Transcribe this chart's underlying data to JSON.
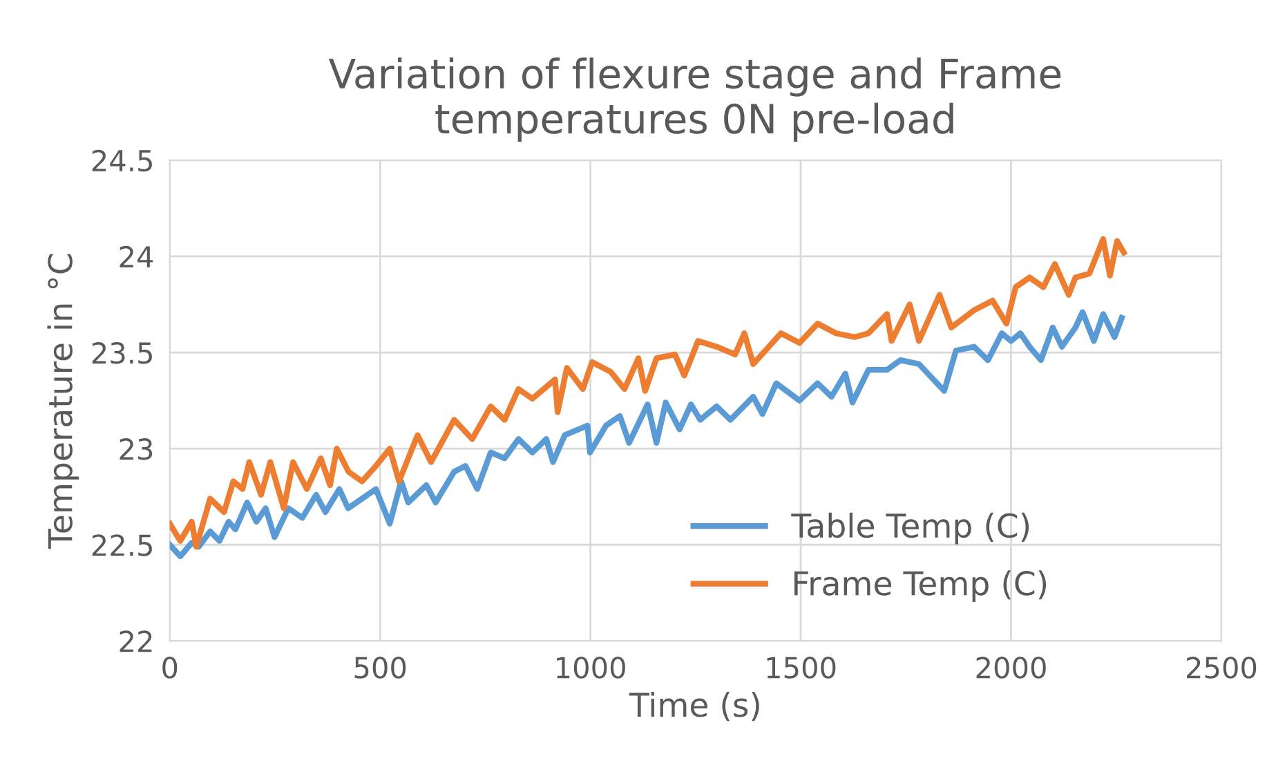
{
  "chart_data": {
    "type": "line",
    "title": "Variation of flexure stage and Frame\ntemperatures 0N pre-load",
    "xlabel": "Time (s)",
    "ylabel": "Temperature in °C",
    "xlim": [
      0,
      2500
    ],
    "xticks": [
      0,
      500,
      1000,
      1500,
      2000,
      2500
    ],
    "ylim": [
      22,
      24.5
    ],
    "yticks": [
      22,
      22.5,
      23,
      23.5,
      24,
      24.5
    ],
    "grid": true,
    "legend": "bottom right",
    "marker": "none",
    "line_style": "solid",
    "series": [
      {
        "name": "Table Temp (C)",
        "color": "#5b9bd5",
        "x": [
          0,
          25,
          52,
          69,
          96,
          118,
          140,
          156,
          184,
          206,
          228,
          249,
          282,
          315,
          348,
          370,
          403,
          424,
          457,
          490,
          523,
          550,
          567,
          610,
          632,
          676,
          703,
          731,
          763,
          796,
          829,
          862,
          895,
          911,
          939,
          993,
          999,
          1037,
          1070,
          1092,
          1136,
          1157,
          1179,
          1212,
          1239,
          1261,
          1300,
          1333,
          1387,
          1409,
          1442,
          1497,
          1540,
          1573,
          1606,
          1623,
          1661,
          1705,
          1737,
          1781,
          1841,
          1869,
          1912,
          1945,
          1978,
          2000,
          2022,
          2044,
          2071,
          2099,
          2121,
          2153,
          2170,
          2197,
          2219,
          2246,
          2263
        ],
        "values": [
          22.5,
          22.44,
          22.51,
          22.49,
          22.57,
          22.52,
          22.62,
          22.58,
          22.72,
          22.62,
          22.69,
          22.54,
          22.69,
          22.64,
          22.76,
          22.67,
          22.79,
          22.69,
          22.74,
          22.79,
          22.61,
          22.83,
          22.72,
          22.81,
          22.72,
          22.88,
          22.91,
          22.79,
          22.98,
          22.95,
          23.05,
          22.98,
          23.05,
          22.93,
          23.07,
          23.12,
          22.98,
          23.12,
          23.17,
          23.03,
          23.23,
          23.03,
          23.24,
          23.1,
          23.23,
          23.15,
          23.22,
          23.15,
          23.27,
          23.18,
          23.34,
          23.25,
          23.34,
          23.27,
          23.39,
          23.24,
          23.41,
          23.41,
          23.46,
          23.44,
          23.3,
          23.51,
          23.53,
          23.46,
          23.6,
          23.56,
          23.6,
          23.53,
          23.46,
          23.63,
          23.53,
          23.63,
          23.71,
          23.56,
          23.7,
          23.58,
          23.68
        ]
      },
      {
        "name": "Frame Temp (C)",
        "color": "#ed7d31",
        "x": [
          0,
          25,
          52,
          63,
          96,
          129,
          151,
          173,
          189,
          217,
          239,
          271,
          293,
          326,
          359,
          381,
          397,
          425,
          457,
          490,
          523,
          545,
          589,
          621,
          676,
          719,
          763,
          796,
          829,
          862,
          916,
          922,
          944,
          982,
          1004,
          1048,
          1081,
          1114,
          1130,
          1157,
          1201,
          1223,
          1256,
          1300,
          1344,
          1366,
          1387,
          1453,
          1497,
          1540,
          1584,
          1628,
          1661,
          1705,
          1716,
          1759,
          1781,
          1830,
          1858,
          1912,
          1956,
          1989,
          2011,
          2044,
          2077,
          2104,
          2137,
          2153,
          2186,
          2219,
          2235,
          2252,
          2268
        ],
        "values": [
          22.61,
          22.52,
          22.62,
          22.49,
          22.74,
          22.67,
          22.83,
          22.79,
          22.93,
          22.76,
          22.93,
          22.69,
          22.93,
          22.79,
          22.95,
          22.81,
          23.0,
          22.88,
          22.83,
          22.91,
          23.0,
          22.83,
          23.07,
          22.93,
          23.15,
          23.05,
          23.22,
          23.15,
          23.31,
          23.26,
          23.36,
          23.19,
          23.42,
          23.31,
          23.45,
          23.4,
          23.31,
          23.47,
          23.3,
          23.47,
          23.49,
          23.38,
          23.56,
          23.53,
          23.49,
          23.6,
          23.44,
          23.6,
          23.55,
          23.65,
          23.6,
          23.58,
          23.6,
          23.7,
          23.56,
          23.75,
          23.56,
          23.8,
          23.63,
          23.72,
          23.77,
          23.65,
          23.84,
          23.89,
          23.84,
          23.96,
          23.8,
          23.89,
          23.91,
          24.09,
          23.9,
          24.08,
          24.02
        ]
      }
    ]
  }
}
